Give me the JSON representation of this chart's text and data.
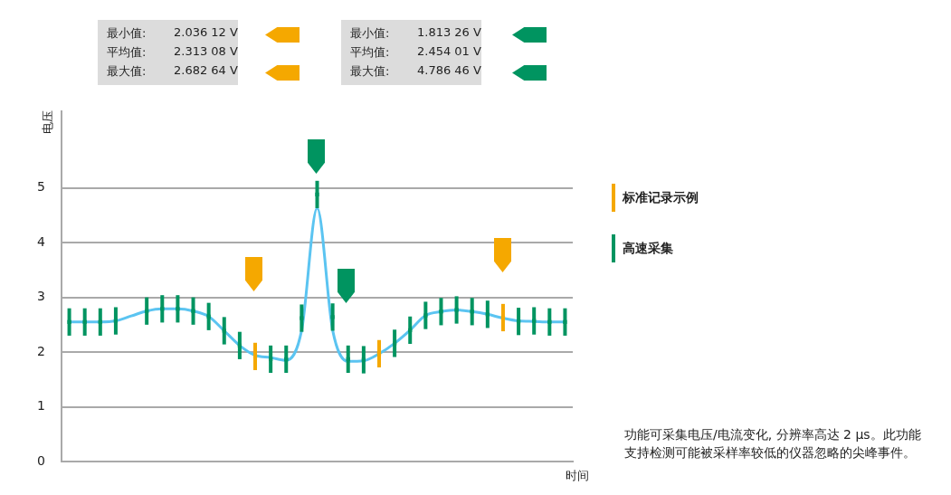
{
  "chart_data": {
    "type": "line",
    "ylabel": "电压",
    "xlabel": "时间",
    "categories": [
      null,
      null,
      null,
      null,
      null,
      null,
      null,
      null,
      null,
      null,
      null,
      null,
      null,
      null,
      null,
      null,
      null,
      null,
      null,
      null,
      null,
      null,
      null,
      null,
      null,
      null,
      null,
      null,
      null,
      null,
      null,
      null,
      null
    ],
    "ylim": [
      0,
      6.4
    ],
    "yticks": [
      0,
      1,
      2,
      3,
      4,
      5
    ],
    "grid": "y",
    "tick_labels": "y",
    "legend": "right",
    "series": [
      {
        "type": "line",
        "color": "#5bc4f1",
        "values": [
          2.55,
          2.55,
          2.55,
          2.57,
          2.66,
          2.75,
          2.79,
          2.79,
          2.75,
          2.65,
          2.39,
          2.12,
          1.94,
          1.9,
          1.85,
          2.4,
          4.63,
          2.4,
          1.83,
          1.84,
          1.97,
          2.16,
          2.4,
          2.67,
          2.74,
          2.77,
          2.74,
          2.69,
          2.62,
          2.57,
          2.56,
          2.55,
          2.55
        ]
      },
      {
        "type": "scatter",
        "name": "标准记录示例",
        "color": "#f5a800",
        "marker": "square",
        "values": [
          null,
          null,
          null,
          null,
          null,
          null,
          null,
          null,
          null,
          null,
          null,
          null,
          1.92,
          null,
          null,
          null,
          null,
          null,
          null,
          null,
          1.97,
          null,
          null,
          null,
          null,
          null,
          null,
          null,
          2.63,
          null,
          null,
          null,
          null
        ],
        "errors": [
          null,
          null,
          null,
          null,
          null,
          null,
          null,
          null,
          null,
          null,
          null,
          null,
          0.25,
          null,
          null,
          null,
          null,
          null,
          null,
          null,
          0.25,
          null,
          null,
          null,
          null,
          null,
          null,
          null,
          0.25,
          null,
          null,
          null,
          null
        ]
      },
      {
        "type": "scatter",
        "name": "高速采集",
        "color": "#009460",
        "marker": "square",
        "values": [
          2.55,
          2.55,
          2.55,
          2.57,
          null,
          2.75,
          2.79,
          2.79,
          2.75,
          2.65,
          2.39,
          2.12,
          null,
          1.87,
          1.87,
          2.62,
          4.88,
          2.64,
          1.87,
          1.86,
          null,
          2.16,
          2.4,
          2.67,
          2.74,
          2.77,
          2.74,
          2.69,
          null,
          2.56,
          2.57,
          2.55,
          2.55
        ],
        "errors": [
          0.25,
          0.25,
          0.25,
          0.25,
          null,
          0.25,
          0.25,
          0.25,
          0.25,
          0.25,
          0.25,
          0.25,
          null,
          0.25,
          0.25,
          0.25,
          0.25,
          0.25,
          0.25,
          0.25,
          null,
          0.25,
          0.25,
          0.25,
          0.25,
          0.25,
          0.25,
          0.25,
          null,
          0.25,
          0.25,
          0.25,
          0.25
        ]
      }
    ],
    "annotations": [
      "最小值:",
      "2.036 12 V",
      "平均值:",
      "2.313 08 V",
      "最大值:",
      "2.682 64 V",
      "最小值:",
      "1.813 26 V",
      "平均值:",
      "2.454 01 V",
      "最大值:",
      "4.786 46 V",
      "功能可采集电压/电流变化, 分辨率高达 2 µs。此功能支持检测可能被采样率较低的仪器忽略的尖峰事件。"
    ]
  }
}
